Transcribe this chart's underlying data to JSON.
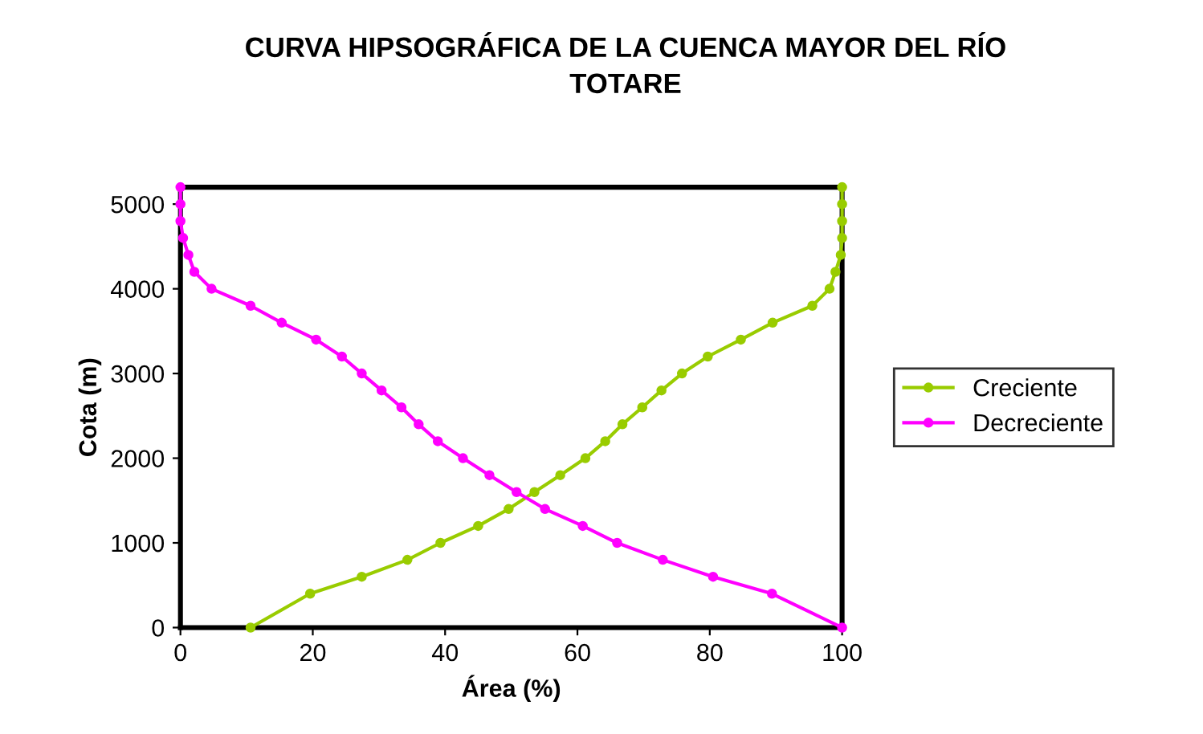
{
  "chart_data": {
    "type": "line",
    "title": "CURVA HIPSOGRÁFICA DE LA CUENCA MAYOR DEL RÍO\nTOTARE",
    "xlabel": "Área (%)",
    "ylabel": "Cota (m)",
    "xlim": [
      0,
      100
    ],
    "ylim": [
      0,
      5200
    ],
    "xticks": [
      0,
      20,
      40,
      60,
      80,
      100
    ],
    "yticks": [
      0,
      1000,
      2000,
      3000,
      4000,
      5000
    ],
    "grid": false,
    "legend": "right",
    "marker": "circle",
    "line_style": "solid",
    "series": [
      {
        "name": "Creciente",
        "color": "#99cc00",
        "x": [
          10.6,
          19.6,
          27.4,
          34.3,
          39.3,
          45.0,
          49.6,
          53.5,
          57.4,
          61.2,
          64.2,
          66.8,
          69.8,
          72.7,
          75.8,
          79.7,
          84.7,
          89.5,
          95.5,
          98.1,
          99.0,
          99.8,
          100,
          100,
          100,
          100
        ],
        "values": [
          0,
          400,
          600,
          800,
          1000,
          1200,
          1400,
          1600,
          1800,
          2000,
          2200,
          2400,
          2600,
          2800,
          3000,
          3200,
          3400,
          3600,
          3800,
          4000,
          4200,
          4400,
          4600,
          4800,
          5000,
          5200
        ]
      },
      {
        "name": "Decreciente",
        "color": "#ff00ff",
        "x": [
          0,
          0,
          0,
          0.4,
          1.2,
          2.1,
          4.7,
          10.6,
          15.3,
          20.5,
          24.4,
          27.4,
          30.4,
          33.4,
          36.0,
          38.9,
          42.7,
          46.7,
          50.8,
          55.1,
          60.8,
          66.0,
          72.9,
          80.5,
          89.4,
          100
        ],
        "values": [
          5200,
          5000,
          4800,
          4600,
          4400,
          4200,
          4000,
          3800,
          3600,
          3400,
          3200,
          3000,
          2800,
          2600,
          2400,
          2200,
          2000,
          1800,
          1600,
          1400,
          1200,
          1000,
          800,
          600,
          400,
          0
        ]
      }
    ]
  }
}
